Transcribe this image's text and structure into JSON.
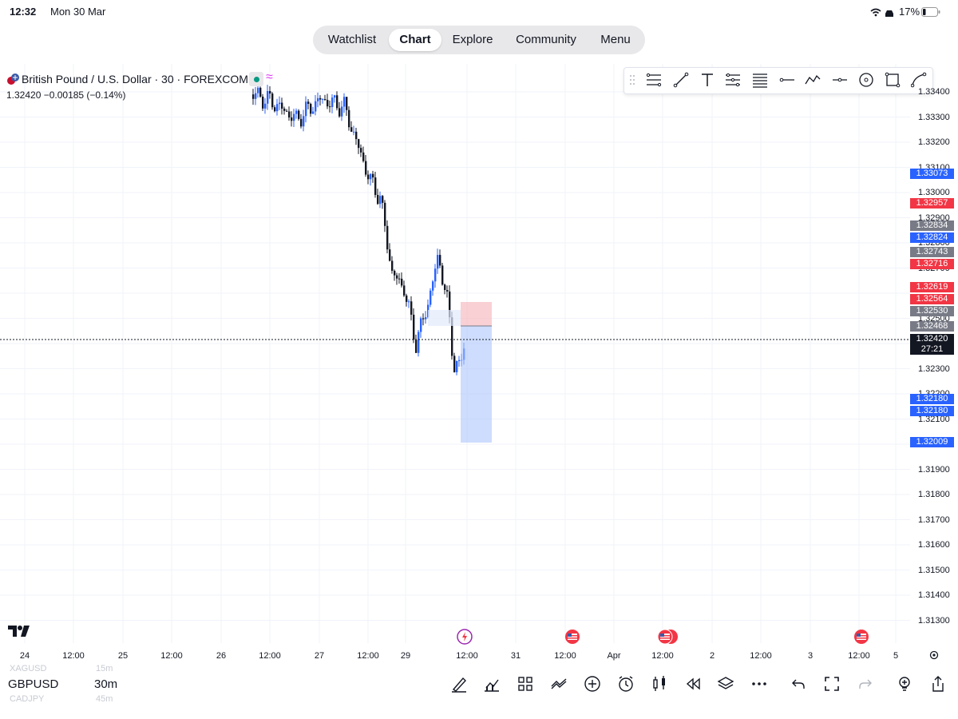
{
  "status_bar": {
    "time": "12:32",
    "date": "Mon 30 Mar",
    "battery": "17%"
  },
  "nav": {
    "tabs": [
      {
        "label": "Watchlist",
        "active": false
      },
      {
        "label": "Chart",
        "active": true
      },
      {
        "label": "Explore",
        "active": false
      },
      {
        "label": "Community",
        "active": false
      },
      {
        "label": "Menu",
        "active": false
      }
    ]
  },
  "symbol": {
    "title": "British Pound / U.S. Dollar · 30 · FOREXCOM",
    "quote": "1.32420  −0.00185 (−0.14%)"
  },
  "drawing_toolbar": {
    "icons": [
      "drag-handle-icon",
      "fib-icon",
      "trend-line-icon",
      "text-icon",
      "pitchfork-icon",
      "gann-icon",
      "horizontal-ray-icon",
      "path-icon",
      "horizontal-line-icon",
      "circle-icon",
      "rectangle-icon",
      "curve-icon"
    ]
  },
  "price_axis": {
    "ticks": [
      "1.33400",
      "1.33300",
      "1.33200",
      "1.33100",
      "1.33000",
      "1.32900",
      "1.32800",
      "1.32700",
      "1.32500",
      "1.32300",
      "1.32200",
      "1.32100",
      "1.31900",
      "1.31800",
      "1.31700",
      "1.31600",
      "1.31500",
      "1.31400",
      "1.31300"
    ],
    "labels": [
      {
        "value": "1.33073",
        "color": "#2962ff"
      },
      {
        "value": "1.32957",
        "color": "#f23645"
      },
      {
        "value": "1.32834",
        "color": "#787b86"
      },
      {
        "value": "1.32824",
        "color": "#2962ff"
      },
      {
        "value": "1.32743",
        "color": "#787b86"
      },
      {
        "value": "1.32716",
        "color": "#f23645"
      },
      {
        "value": "1.32619",
        "color": "#f23645"
      },
      {
        "value": "1.32564",
        "color": "#f23645"
      },
      {
        "value": "1.32530",
        "color": "#787b86"
      },
      {
        "value": "1.32468",
        "color": "#787b86"
      },
      {
        "value": "1.32420",
        "color": "#131722"
      },
      {
        "value": "1.32180",
        "color": "#2962ff"
      },
      {
        "value": "1.32180",
        "color": "#2962ff"
      },
      {
        "value": "1.32009",
        "color": "#2962ff"
      }
    ],
    "countdown": "27:21"
  },
  "time_axis": {
    "labels": [
      "24",
      "12:00",
      "25",
      "12:00",
      "26",
      "12:00",
      "27",
      "12:00",
      "29",
      "12:00",
      "31",
      "12:00",
      "Apr",
      "12:00",
      "2",
      "12:00",
      "3",
      "12:00",
      "5"
    ]
  },
  "colors": {
    "up": "#2962ff",
    "down": "#131722",
    "long_target": "#2962ff",
    "short_stop": "#f23645"
  },
  "bottom": {
    "symbol": "GBPUSD",
    "timeframe": "30m",
    "ghost_prev_symbol": "XAGUSD",
    "ghost_prev_tf": "15m",
    "ghost_next_symbol": "CADJPY",
    "ghost_next_tf": "45m",
    "icons": [
      "draw-icon",
      "indicators-icon",
      "layouts-icon",
      "compare-icon",
      "add-icon",
      "alert-icon",
      "chart-type-icon",
      "replay-icon",
      "layers-icon",
      "more-icon",
      "undo-icon",
      "fullscreen-icon",
      "redo-icon",
      "ideas-icon",
      "share-icon"
    ]
  },
  "chart_data": {
    "type": "candlestick",
    "symbol": "GBPUSD",
    "interval": "30",
    "last_price": 1.3242,
    "visible_price_range": [
      1.3125,
      1.3345
    ],
    "position_tool": {
      "side": "short",
      "entry": 1.32468,
      "stop": 1.32564,
      "target": 1.32009
    },
    "grid": true
  }
}
